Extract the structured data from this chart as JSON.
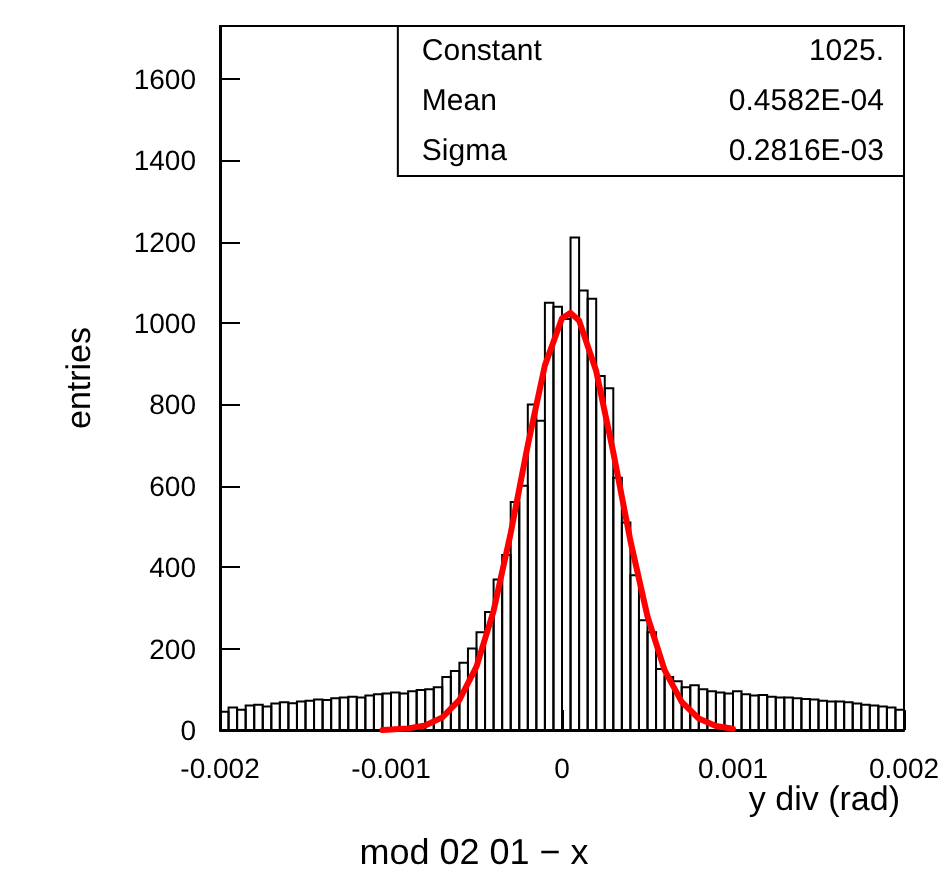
{
  "chart_data": {
    "type": "histogram",
    "title": "mod 02 01 − x",
    "xlabel": "y div (rad)",
    "ylabel": "entries",
    "annotations": [
      "Constant",
      "1025.",
      "Mean",
      "0.4582E-04",
      "Sigma",
      "0.2816E-03"
    ],
    "bins": [
      -0.002,
      -0.00195,
      -0.0019,
      -0.00185,
      -0.0018,
      -0.00175,
      -0.0017,
      -0.00165,
      -0.0016,
      -0.00155,
      -0.0015,
      -0.00145,
      -0.0014,
      -0.00135,
      -0.0013,
      -0.00125,
      -0.0012,
      -0.00115,
      -0.0011,
      -0.00105,
      -0.001,
      -0.00095,
      -0.0009,
      -0.00085,
      -0.0008,
      -0.00075,
      -0.0007,
      -0.00065,
      -0.0006,
      -0.00055,
      -0.0005,
      -0.00045,
      -0.0004,
      -0.00035,
      -0.0003,
      -0.00025,
      -0.0002,
      -0.00015,
      -0.0001,
      -5e-05,
      0,
      5e-05,
      0.0001,
      0.00015,
      0.0002,
      0.00025,
      0.0003,
      0.00035,
      0.0004,
      0.00045,
      0.0005,
      0.00055,
      0.0006,
      0.00065,
      0.0007,
      0.00075,
      0.0008,
      0.00085,
      0.0009,
      0.00095,
      0.001,
      0.00105,
      0.0011,
      0.00115,
      0.0012,
      0.00125,
      0.0013,
      0.00135,
      0.0014,
      0.00145,
      0.0015,
      0.00155,
      0.0016,
      0.00165,
      0.0017,
      0.00175,
      0.0018,
      0.00185,
      0.0019,
      0.00195,
      0.002
    ],
    "series": [
      {
        "color": "#000000",
        "values": [
          45,
          55,
          50,
          60,
          62,
          58,
          65,
          68,
          66,
          70,
          72,
          75,
          74,
          78,
          80,
          82,
          80,
          85,
          88,
          90,
          92,
          90,
          95,
          98,
          100,
          105,
          130,
          145,
          165,
          200,
          240,
          290,
          370,
          430,
          560,
          600,
          800,
          760,
          1050,
          1040,
          1010,
          1210,
          1080,
          1060,
          870,
          840,
          620,
          510,
          380,
          270,
          240,
          150,
          130,
          120,
          105,
          110,
          100,
          95,
          92,
          90,
          95,
          88,
          85,
          86,
          82,
          80,
          80,
          78,
          76,
          75,
          72,
          70,
          70,
          68,
          65,
          62,
          60,
          58,
          55,
          50
        ]
      },
      {
        "type": "line",
        "color": "#ff0000",
        "x": [
          -0.00105,
          -0.001,
          -0.0009,
          -0.0008,
          -0.0007,
          -0.0006,
          -0.0005,
          -0.0004,
          -0.0003,
          -0.0002,
          -0.0001,
          0,
          5e-05,
          0.0001,
          0.0002,
          0.0003,
          0.0004,
          0.0005,
          0.0006,
          0.0007,
          0.0008,
          0.0009,
          0.001
        ],
        "values": [
          0,
          1,
          4,
          11,
          31,
          74,
          156,
          293,
          484,
          700,
          896,
          1012,
          1025,
          1006,
          882,
          682,
          465,
          279,
          147,
          69,
          28,
          10,
          3
        ]
      }
    ],
    "xlim": [
      -0.002,
      0.002
    ],
    "xticks": [
      -0.002,
      -0.001,
      0,
      0.001,
      0.002
    ],
    "ylim": [
      0,
      1730
    ],
    "yticks": [
      0,
      200,
      400,
      600,
      800,
      1000,
      1200,
      1400,
      1600
    ],
    "grid": false,
    "marker": "none",
    "line_style": "solid"
  }
}
